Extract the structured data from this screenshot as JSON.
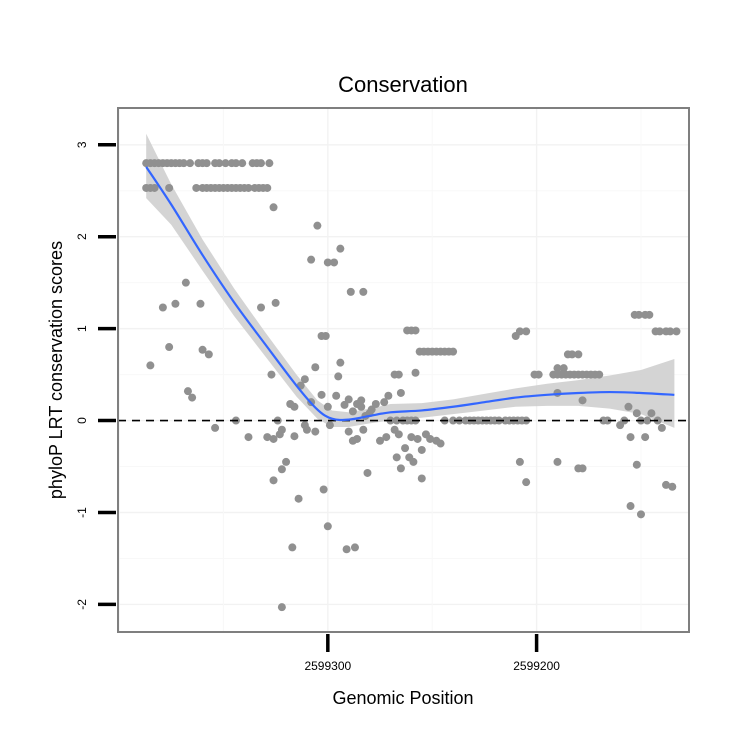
{
  "chart_data": {
    "type": "scatter",
    "title": "Conservation",
    "xlabel": "Genomic Position",
    "ylabel": "phyloP LRT conservation scores",
    "x_reversed": true,
    "xlim": [
      2599400.5,
      2599127
    ],
    "ylim": [
      -2.3,
      3.4
    ],
    "x_ticks": [
      2599300,
      2599200
    ],
    "y_ticks": [
      -2,
      -1,
      0,
      1,
      2,
      3
    ],
    "grid": true,
    "reference_line": {
      "y": 0,
      "style": "dashed"
    },
    "colors": {
      "points": "#909090",
      "smooth": "#3366FF",
      "ribbon": "#CCCCCC",
      "panel_border": "#7F7F7F"
    },
    "points": [
      [
        2599387,
        2.8
      ],
      [
        2599385,
        2.8
      ],
      [
        2599383,
        2.8
      ],
      [
        2599381,
        2.8
      ],
      [
        2599379,
        2.8
      ],
      [
        2599377,
        2.8
      ],
      [
        2599375,
        2.8
      ],
      [
        2599373,
        2.8
      ],
      [
        2599371,
        2.8
      ],
      [
        2599369,
        2.8
      ],
      [
        2599366,
        2.8
      ],
      [
        2599362,
        2.8
      ],
      [
        2599360,
        2.8
      ],
      [
        2599358,
        2.8
      ],
      [
        2599354,
        2.8
      ],
      [
        2599352,
        2.8
      ],
      [
        2599349,
        2.8
      ],
      [
        2599346,
        2.8
      ],
      [
        2599344,
        2.8
      ],
      [
        2599341,
        2.8
      ],
      [
        2599336,
        2.8
      ],
      [
        2599334,
        2.8
      ],
      [
        2599332,
        2.8
      ],
      [
        2599328,
        2.8
      ],
      [
        2599387,
        2.53
      ],
      [
        2599385,
        2.53
      ],
      [
        2599383,
        2.53
      ],
      [
        2599376,
        2.53
      ],
      [
        2599363,
        2.53
      ],
      [
        2599360,
        2.53
      ],
      [
        2599358,
        2.53
      ],
      [
        2599356,
        2.53
      ],
      [
        2599354,
        2.53
      ],
      [
        2599352,
        2.53
      ],
      [
        2599350,
        2.53
      ],
      [
        2599348,
        2.53
      ],
      [
        2599346,
        2.53
      ],
      [
        2599344,
        2.53
      ],
      [
        2599342,
        2.53
      ],
      [
        2599340,
        2.53
      ],
      [
        2599338,
        2.53
      ],
      [
        2599335,
        2.53
      ],
      [
        2599333,
        2.53
      ],
      [
        2599331,
        2.53
      ],
      [
        2599329,
        2.53
      ],
      [
        2599326,
        2.32
      ],
      [
        2599305,
        2.12
      ],
      [
        2599294,
        1.87
      ],
      [
        2599297,
        1.72
      ],
      [
        2599300,
        1.72
      ],
      [
        2599308,
        1.75
      ],
      [
        2599289,
        1.4
      ],
      [
        2599283,
        1.4
      ],
      [
        2599368,
        1.5
      ],
      [
        2599373,
        1.27
      ],
      [
        2599379,
        1.23
      ],
      [
        2599361,
        1.27
      ],
      [
        2599325,
        1.28
      ],
      [
        2599332,
        1.23
      ],
      [
        2599376,
        0.8
      ],
      [
        2599360,
        0.77
      ],
      [
        2599357,
        0.72
      ],
      [
        2599385,
        0.6
      ],
      [
        2599303,
        0.92
      ],
      [
        2599301,
        0.92
      ],
      [
        2599294,
        0.63
      ],
      [
        2599306,
        0.58
      ],
      [
        2599327,
        0.5
      ],
      [
        2599295,
        0.48
      ],
      [
        2599311,
        0.45
      ],
      [
        2599313,
        0.38
      ],
      [
        2599308,
        0.2
      ],
      [
        2599316,
        0.15
      ],
      [
        2599318,
        0.18
      ],
      [
        2599303,
        0.28
      ],
      [
        2599296,
        0.27
      ],
      [
        2599300,
        0.15
      ],
      [
        2599367,
        0.32
      ],
      [
        2599365,
        0.25
      ],
      [
        2599290,
        0.23
      ],
      [
        2599286,
        0.18
      ],
      [
        2599292,
        0.17
      ],
      [
        2599288,
        0.1
      ],
      [
        2599284,
        0.15
      ],
      [
        2599299,
        -0.05
      ],
      [
        2599306,
        -0.12
      ],
      [
        2599311,
        -0.05
      ],
      [
        2599310,
        -0.1
      ],
      [
        2599316,
        -0.17
      ],
      [
        2599354,
        -0.08
      ],
      [
        2599344,
        0.0
      ],
      [
        2599338,
        -0.18
      ],
      [
        2599329,
        -0.18
      ],
      [
        2599326,
        -0.2
      ],
      [
        2599323,
        -0.15
      ],
      [
        2599324,
        0.0
      ],
      [
        2599322,
        -0.1
      ],
      [
        2599326,
        -0.65
      ],
      [
        2599322,
        -0.53
      ],
      [
        2599320,
        -0.45
      ],
      [
        2599314,
        -0.85
      ],
      [
        2599317,
        -1.38
      ],
      [
        2599302,
        -0.75
      ],
      [
        2599300,
        -1.15
      ],
      [
        2599291,
        -1.4
      ],
      [
        2599287,
        -1.38
      ],
      [
        2599322,
        -2.03
      ],
      [
        2599290,
        -0.12
      ],
      [
        2599288,
        -0.22
      ],
      [
        2599286,
        -0.2
      ],
      [
        2599283,
        -0.1
      ],
      [
        2599281,
        -0.57
      ],
      [
        2599280,
        0.08
      ],
      [
        2599279,
        0.12
      ],
      [
        2599277,
        0.18
      ],
      [
        2599284,
        0.22
      ],
      [
        2599282,
        0.05
      ],
      [
        2599262,
        0.98
      ],
      [
        2599260,
        0.98
      ],
      [
        2599258,
        0.98
      ],
      [
        2599258,
        0.52
      ],
      [
        2599256,
        0.75
      ],
      [
        2599254,
        0.75
      ],
      [
        2599252,
        0.75
      ],
      [
        2599250,
        0.75
      ],
      [
        2599248,
        0.75
      ],
      [
        2599246,
        0.75
      ],
      [
        2599244,
        0.75
      ],
      [
        2599242,
        0.75
      ],
      [
        2599240,
        0.75
      ],
      [
        2599268,
        0.5
      ],
      [
        2599266,
        0.5
      ],
      [
        2599265,
        0.3
      ],
      [
        2599271,
        0.27
      ],
      [
        2599273,
        0.2
      ],
      [
        2599275,
        -0.22
      ],
      [
        2599272,
        -0.18
      ],
      [
        2599268,
        -0.1
      ],
      [
        2599266,
        -0.15
      ],
      [
        2599263,
        -0.3
      ],
      [
        2599260,
        -0.18
      ],
      [
        2599257,
        -0.2
      ],
      [
        2599255,
        -0.32
      ],
      [
        2599253,
        -0.15
      ],
      [
        2599251,
        -0.2
      ],
      [
        2599248,
        -0.22
      ],
      [
        2599246,
        -0.25
      ],
      [
        2599267,
        -0.4
      ],
      [
        2599265,
        -0.52
      ],
      [
        2599261,
        -0.4
      ],
      [
        2599259,
        -0.45
      ],
      [
        2599255,
        -0.63
      ],
      [
        2599270,
        0.0
      ],
      [
        2599267,
        0.0
      ],
      [
        2599264,
        0.0
      ],
      [
        2599262,
        0.0
      ],
      [
        2599260,
        0.0
      ],
      [
        2599258,
        0.0
      ],
      [
        2599244,
        0.0
      ],
      [
        2599240,
        0.0
      ],
      [
        2599237,
        0.0
      ],
      [
        2599234,
        0.0
      ],
      [
        2599232,
        0.0
      ],
      [
        2599230,
        0.0
      ],
      [
        2599228,
        0.0
      ],
      [
        2599226,
        0.0
      ],
      [
        2599224,
        0.0
      ],
      [
        2599222,
        0.0
      ],
      [
        2599220,
        0.0
      ],
      [
        2599218,
        0.0
      ],
      [
        2599215,
        0.0
      ],
      [
        2599213,
        0.0
      ],
      [
        2599211,
        0.0
      ],
      [
        2599209,
        0.0
      ],
      [
        2599207,
        0.0
      ],
      [
        2599205,
        0.0
      ],
      [
        2599210,
        0.92
      ],
      [
        2599208,
        0.97
      ],
      [
        2599205,
        0.97
      ],
      [
        2599190,
        0.57
      ],
      [
        2599187,
        0.57
      ],
      [
        2599185,
        0.72
      ],
      [
        2599183,
        0.72
      ],
      [
        2599180,
        0.72
      ],
      [
        2599201,
        0.5
      ],
      [
        2599199,
        0.5
      ],
      [
        2599192,
        0.5
      ],
      [
        2599190,
        0.5
      ],
      [
        2599188,
        0.5
      ],
      [
        2599186,
        0.5
      ],
      [
        2599184,
        0.5
      ],
      [
        2599182,
        0.5
      ],
      [
        2599180,
        0.5
      ],
      [
        2599178,
        0.5
      ],
      [
        2599176,
        0.5
      ],
      [
        2599174,
        0.5
      ],
      [
        2599172,
        0.5
      ],
      [
        2599170,
        0.5
      ],
      [
        2599190,
        0.3
      ],
      [
        2599178,
        0.22
      ],
      [
        2599168,
        0.0
      ],
      [
        2599166,
        0.0
      ],
      [
        2599158,
        0.0
      ],
      [
        2599150,
        0.0
      ],
      [
        2599147,
        0.0
      ],
      [
        2599142,
        0.0
      ],
      [
        2599208,
        -0.45
      ],
      [
        2599205,
        -0.67
      ],
      [
        2599190,
        -0.45
      ],
      [
        2599180,
        -0.52
      ],
      [
        2599178,
        -0.52
      ],
      [
        2599160,
        -0.05
      ],
      [
        2599155,
        -0.18
      ],
      [
        2599148,
        -0.18
      ],
      [
        2599156,
        0.15
      ],
      [
        2599152,
        0.08
      ],
      [
        2599145,
        0.08
      ],
      [
        2599140,
        -0.08
      ],
      [
        2599135,
        -0.72
      ],
      [
        2599138,
        -0.7
      ],
      [
        2599150,
        -1.02
      ],
      [
        2599155,
        -0.93
      ],
      [
        2599152,
        -0.48
      ],
      [
        2599153,
        1.15
      ],
      [
        2599151,
        1.15
      ],
      [
        2599148,
        1.15
      ],
      [
        2599146,
        1.15
      ],
      [
        2599143,
        0.97
      ],
      [
        2599141,
        0.97
      ],
      [
        2599138,
        0.97
      ],
      [
        2599136,
        0.97
      ],
      [
        2599133,
        0.97
      ]
    ],
    "smooth": [
      {
        "x": 2599387,
        "y": 2.76,
        "lo": 2.42,
        "hi": 3.12
      },
      {
        "x": 2599375,
        "y": 2.35,
        "lo": 2.13,
        "hi": 2.57
      },
      {
        "x": 2599360,
        "y": 1.8,
        "lo": 1.63,
        "hi": 1.97
      },
      {
        "x": 2599345,
        "y": 1.29,
        "lo": 1.14,
        "hi": 1.44
      },
      {
        "x": 2599330,
        "y": 0.83,
        "lo": 0.7,
        "hi": 0.96
      },
      {
        "x": 2599315,
        "y": 0.38,
        "lo": 0.26,
        "hi": 0.5
      },
      {
        "x": 2599305,
        "y": 0.12,
        "lo": 0.02,
        "hi": 0.22
      },
      {
        "x": 2599298,
        "y": 0.02,
        "lo": -0.07,
        "hi": 0.11
      },
      {
        "x": 2599290,
        "y": 0.01,
        "lo": -0.07,
        "hi": 0.09
      },
      {
        "x": 2599280,
        "y": 0.05,
        "lo": -0.03,
        "hi": 0.13
      },
      {
        "x": 2599270,
        "y": 0.09,
        "lo": 0.0,
        "hi": 0.18
      },
      {
        "x": 2599255,
        "y": 0.11,
        "lo": 0.03,
        "hi": 0.19
      },
      {
        "x": 2599240,
        "y": 0.15,
        "lo": 0.07,
        "hi": 0.23
      },
      {
        "x": 2599225,
        "y": 0.2,
        "lo": 0.11,
        "hi": 0.29
      },
      {
        "x": 2599210,
        "y": 0.25,
        "lo": 0.15,
        "hi": 0.35
      },
      {
        "x": 2599195,
        "y": 0.28,
        "lo": 0.16,
        "hi": 0.4
      },
      {
        "x": 2599180,
        "y": 0.3,
        "lo": 0.16,
        "hi": 0.44
      },
      {
        "x": 2599165,
        "y": 0.31,
        "lo": 0.13,
        "hi": 0.49
      },
      {
        "x": 2599150,
        "y": 0.3,
        "lo": 0.07,
        "hi": 0.55
      },
      {
        "x": 2599134,
        "y": 0.28,
        "lo": -0.08,
        "hi": 0.67
      }
    ]
  }
}
